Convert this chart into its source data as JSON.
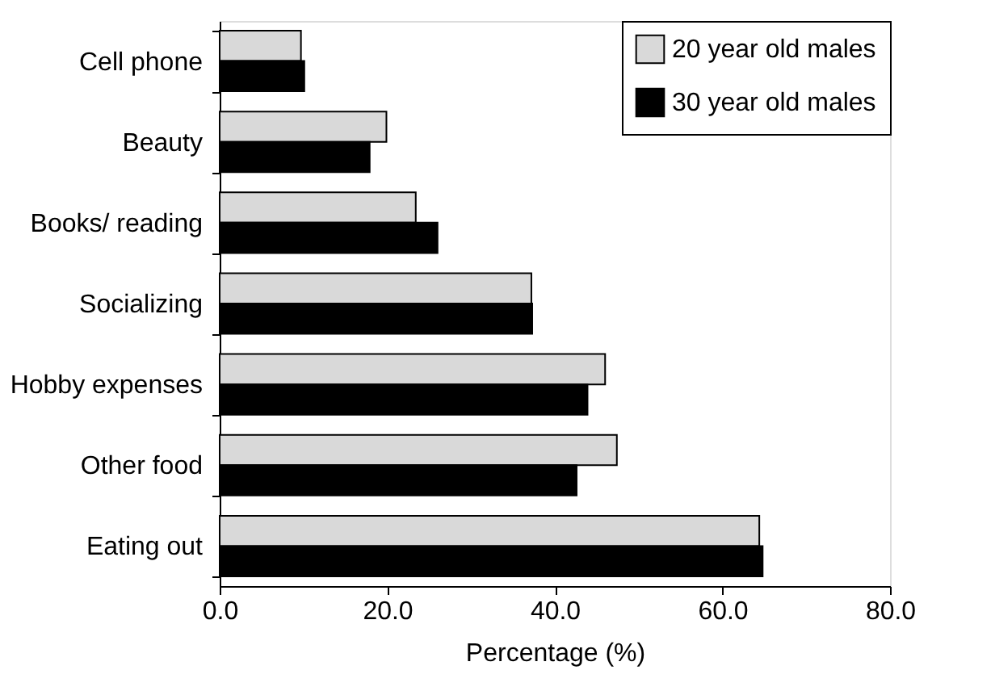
{
  "chart_data": {
    "type": "bar",
    "orientation": "horizontal",
    "xlabel": "Percentage (%)",
    "categories": [
      "Cell phone",
      "Beauty",
      "Books/ reading",
      "Socializing",
      "Hobby expenses",
      "Other food",
      "Eating out"
    ],
    "series": [
      {
        "name": "20 year old males",
        "color": "#d9d9d9",
        "values": [
          9.7,
          19.9,
          23.4,
          37.2,
          46.0,
          47.4,
          64.4
        ]
      },
      {
        "name": "30 year old males",
        "color": "#000000",
        "values": [
          10.1,
          17.9,
          26.0,
          37.3,
          43.9,
          42.6,
          64.8
        ]
      }
    ],
    "xlim": [
      0,
      80
    ],
    "xticks": [
      {
        "value": 0,
        "label": "0.0"
      },
      {
        "value": 20,
        "label": "20.0"
      },
      {
        "value": 40,
        "label": "40.0"
      },
      {
        "value": 60,
        "label": "60.0"
      },
      {
        "value": 80,
        "label": "80.0"
      }
    ],
    "legend": "top right",
    "grid": false
  }
}
